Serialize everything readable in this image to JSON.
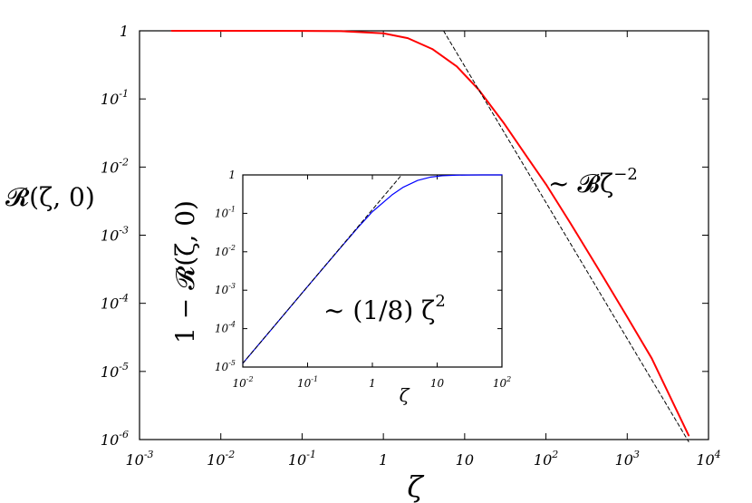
{
  "chart_data": [
    {
      "type": "line",
      "scale": "log-log",
      "xlabel": "ζ",
      "ylabel": "𝓡(ζ, 0)",
      "xlim": [
        0.001,
        10000
      ],
      "ylim": [
        1e-06,
        1
      ],
      "grid": false,
      "x_ticks": [
        {
          "value": 0.001,
          "base": "10",
          "exp": "-3"
        },
        {
          "value": 0.01,
          "base": "10",
          "exp": "-2"
        },
        {
          "value": 0.1,
          "base": "10",
          "exp": "-1"
        },
        {
          "value": 1,
          "base": "1",
          "exp": ""
        },
        {
          "value": 10,
          "base": "10",
          "exp": ""
        },
        {
          "value": 100,
          "base": "10",
          "exp": "2"
        },
        {
          "value": 1000,
          "base": "10",
          "exp": "3"
        },
        {
          "value": 10000,
          "base": "10",
          "exp": "4"
        }
      ],
      "y_ticks": [
        {
          "value": 1,
          "base": "1",
          "exp": ""
        },
        {
          "value": 0.1,
          "base": "10",
          "exp": "-1"
        },
        {
          "value": 0.01,
          "base": "10",
          "exp": "-2"
        },
        {
          "value": 0.001,
          "base": "10",
          "exp": "-3"
        },
        {
          "value": 0.0001,
          "base": "10",
          "exp": "-4"
        },
        {
          "value": 1e-05,
          "base": "10",
          "exp": "-5"
        },
        {
          "value": 1e-06,
          "base": "10",
          "exp": "-6"
        }
      ],
      "series": [
        {
          "color": "#ff0000",
          "x": [
            0.0025,
            0.01,
            0.1,
            0.3,
            1,
            2,
            4,
            8,
            15,
            30,
            60,
            100,
            200,
            500,
            1000,
            2000,
            5700
          ],
          "y": [
            1,
            1,
            0.998,
            0.99,
            0.92,
            0.78,
            0.54,
            0.3,
            0.135,
            0.045,
            0.0135,
            0.0056,
            0.0015,
            0.00025,
            6.3e-05,
            1.56e-05,
            1.15e-06
          ]
        },
        {
          "color": "#000000",
          "dashed": true,
          "x": [
            5.5,
            5700
          ],
          "y": [
            1,
            9.3e-07
          ]
        }
      ],
      "annotations": [
        {
          "text": "~ 𝓑ζ",
          "exp": "−2"
        }
      ]
    },
    {
      "type": "line",
      "scale": "log-log",
      "xlabel": "ζ",
      "ylabel": "1 − 𝓡(ζ, 0)",
      "xlim": [
        0.01,
        100
      ],
      "ylim": [
        1e-05,
        1
      ],
      "grid": false,
      "x_ticks": [
        {
          "value": 0.01,
          "base": "10",
          "exp": "-2"
        },
        {
          "value": 0.1,
          "base": "10",
          "exp": "-1"
        },
        {
          "value": 1,
          "base": "1",
          "exp": ""
        },
        {
          "value": 10,
          "base": "10",
          "exp": ""
        },
        {
          "value": 100,
          "base": "10",
          "exp": "2"
        }
      ],
      "y_ticks": [
        {
          "value": 1,
          "base": "1",
          "exp": ""
        },
        {
          "value": 0.1,
          "base": "10",
          "exp": "-1"
        },
        {
          "value": 0.01,
          "base": "10",
          "exp": "-2"
        },
        {
          "value": 0.001,
          "base": "10",
          "exp": "-3"
        },
        {
          "value": 0.0001,
          "base": "10",
          "exp": "-4"
        },
        {
          "value": 1e-05,
          "base": "10",
          "exp": "-5"
        }
      ],
      "series": [
        {
          "color": "#0000ff",
          "x": [
            0.01,
            0.03,
            0.1,
            0.3,
            0.6,
            1,
            2,
            3,
            5,
            8,
            12,
            20,
            30,
            50,
            100
          ],
          "y": [
            1.25e-05,
            0.000112,
            0.00125,
            0.011,
            0.043,
            0.11,
            0.3,
            0.48,
            0.72,
            0.88,
            0.95,
            0.985,
            0.995,
            0.999,
            1
          ]
        },
        {
          "color": "#000000",
          "dashed": true,
          "x": [
            0.01,
            2.7
          ],
          "y": [
            1.25e-05,
            0.91
          ]
        }
      ],
      "annotations": [
        {
          "text": "~ (1/8) ζ",
          "exp": "2"
        }
      ]
    }
  ]
}
